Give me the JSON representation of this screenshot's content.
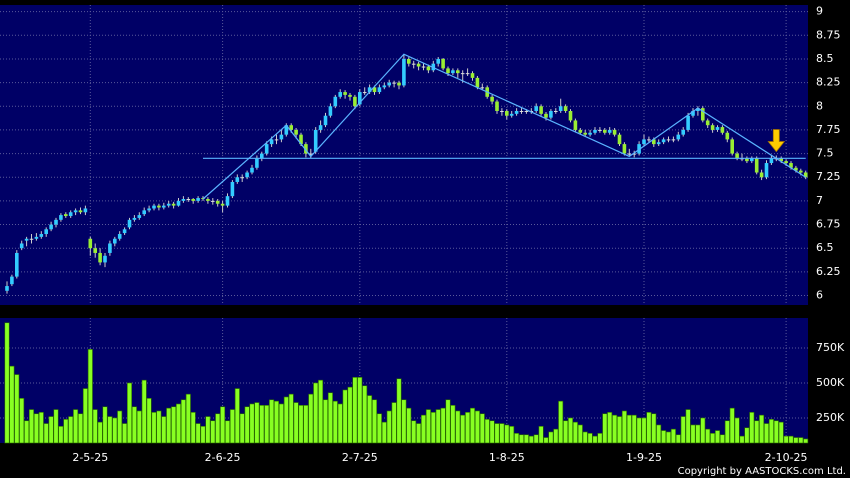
{
  "chart_data": {
    "type": "candlestick",
    "up_color": "#33ccff",
    "down_color": "#99ee33",
    "grid": true,
    "ylim": [
      5.9,
      9.07
    ],
    "yticks": [
      6,
      6.25,
      6.5,
      6.75,
      7,
      7.25,
      7.5,
      7.75,
      8,
      8.25,
      8.5,
      8.75,
      9
    ],
    "categories": [
      null,
      null,
      null,
      null,
      null,
      null,
      null,
      null,
      null,
      null,
      null,
      null,
      null,
      null,
      null,
      null,
      null,
      "2-5-25",
      null,
      null,
      null,
      null,
      null,
      null,
      null,
      null,
      null,
      null,
      null,
      null,
      null,
      null,
      null,
      null,
      null,
      null,
      null,
      null,
      null,
      null,
      null,
      null,
      null,
      null,
      "2-6-25",
      null,
      null,
      null,
      null,
      null,
      null,
      null,
      null,
      null,
      null,
      null,
      null,
      null,
      null,
      null,
      null,
      null,
      null,
      null,
      null,
      null,
      null,
      null,
      null,
      null,
      null,
      null,
      "2-7-25",
      null,
      null,
      null,
      null,
      null,
      null,
      null,
      null,
      null,
      null,
      null,
      null,
      null,
      null,
      null,
      null,
      null,
      null,
      null,
      null,
      null,
      null,
      null,
      null,
      null,
      null,
      null,
      null,
      null,
      "1-8-25",
      null,
      null,
      null,
      null,
      null,
      null,
      null,
      null,
      null,
      null,
      null,
      null,
      null,
      null,
      null,
      null,
      null,
      null,
      null,
      null,
      null,
      null,
      null,
      null,
      null,
      null,
      null,
      "1-9-25",
      null,
      null,
      null,
      null,
      null,
      null,
      null,
      null,
      null,
      null,
      null,
      null,
      null,
      null,
      null,
      null,
      null,
      null,
      null,
      null,
      null,
      null,
      null,
      null,
      null,
      null,
      null,
      null,
      "2-10-25",
      null,
      null,
      null,
      null
    ],
    "candles": [
      [
        6.05,
        6.15,
        6.02,
        6.1
      ],
      [
        6.12,
        6.22,
        6.1,
        6.2
      ],
      [
        6.2,
        6.48,
        6.18,
        6.45
      ],
      [
        6.5,
        6.58,
        6.48,
        6.55
      ],
      [
        6.58,
        6.62,
        6.52,
        6.6
      ],
      [
        6.6,
        6.65,
        6.55,
        6.6
      ],
      [
        6.6,
        6.66,
        6.58,
        6.62
      ],
      [
        6.62,
        6.68,
        6.6,
        6.65
      ],
      [
        6.65,
        6.72,
        6.62,
        6.7
      ],
      [
        6.7,
        6.78,
        6.68,
        6.75
      ],
      [
        6.75,
        6.82,
        6.72,
        6.8
      ],
      [
        6.8,
        6.87,
        6.78,
        6.85
      ],
      [
        6.86,
        6.88,
        6.82,
        6.84
      ],
      [
        6.84,
        6.9,
        6.82,
        6.88
      ],
      [
        6.88,
        6.92,
        6.85,
        6.9
      ],
      [
        6.9,
        6.93,
        6.86,
        6.88
      ],
      [
        6.88,
        6.95,
        6.85,
        6.92
      ],
      [
        6.6,
        6.62,
        6.42,
        6.5
      ],
      [
        6.5,
        6.55,
        6.4,
        6.45
      ],
      [
        6.45,
        6.5,
        6.32,
        6.35
      ],
      [
        6.35,
        6.45,
        6.3,
        6.42
      ],
      [
        6.45,
        6.58,
        6.42,
        6.55
      ],
      [
        6.55,
        6.62,
        6.52,
        6.6
      ],
      [
        6.6,
        6.68,
        6.58,
        6.65
      ],
      [
        6.66,
        6.72,
        6.64,
        6.7
      ],
      [
        6.72,
        6.82,
        6.7,
        6.8
      ],
      [
        6.8,
        6.85,
        6.78,
        6.82
      ],
      [
        6.82,
        6.88,
        6.8,
        6.85
      ],
      [
        6.86,
        6.93,
        6.84,
        6.9
      ],
      [
        6.9,
        6.95,
        6.88,
        6.92
      ],
      [
        6.92,
        6.97,
        6.9,
        6.95
      ],
      [
        6.95,
        6.97,
        6.9,
        6.93
      ],
      [
        6.93,
        6.98,
        6.91,
        6.95
      ],
      [
        6.95,
        7,
        6.93,
        6.97
      ],
      [
        6.97,
        6.99,
        6.92,
        6.95
      ],
      [
        6.95,
        7.03,
        6.94,
        7
      ],
      [
        7,
        7.05,
        6.98,
        7.02
      ],
      [
        7.02,
        7.04,
        6.99,
        7.02
      ],
      [
        7.02,
        7.03,
        6.97,
        7
      ],
      [
        7,
        7.05,
        6.98,
        7.03
      ],
      [
        7.03,
        7.05,
        7,
        7.02
      ],
      [
        7.02,
        7.04,
        6.97,
        7
      ],
      [
        7,
        7.03,
        6.96,
        7
      ],
      [
        7,
        7.02,
        6.94,
        6.97
      ],
      [
        6.97,
        7,
        6.88,
        6.95
      ],
      [
        6.95,
        7.08,
        6.93,
        7.05
      ],
      [
        7.05,
        7.22,
        7.03,
        7.2
      ],
      [
        7.2,
        7.28,
        7.18,
        7.25
      ],
      [
        7.25,
        7.28,
        7.2,
        7.25
      ],
      [
        7.25,
        7.32,
        7.23,
        7.3
      ],
      [
        7.3,
        7.38,
        7.28,
        7.35
      ],
      [
        7.35,
        7.48,
        7.33,
        7.45
      ],
      [
        7.45,
        7.52,
        7.42,
        7.5
      ],
      [
        7.5,
        7.63,
        7.48,
        7.6
      ],
      [
        7.6,
        7.68,
        7.57,
        7.65
      ],
      [
        7.65,
        7.7,
        7.6,
        7.65
      ],
      [
        7.65,
        7.75,
        7.62,
        7.7
      ],
      [
        7.7,
        7.82,
        7.68,
        7.8
      ],
      [
        7.8,
        7.82,
        7.72,
        7.75
      ],
      [
        7.75,
        7.77,
        7.66,
        7.7
      ],
      [
        7.7,
        7.72,
        7.58,
        7.6
      ],
      [
        7.6,
        7.62,
        7.46,
        7.5
      ],
      [
        7.5,
        7.55,
        7.45,
        7.5
      ],
      [
        7.52,
        7.78,
        7.5,
        7.75
      ],
      [
        7.75,
        7.85,
        7.72,
        7.8
      ],
      [
        7.8,
        7.93,
        7.78,
        7.9
      ],
      [
        7.9,
        8.03,
        7.88,
        8
      ],
      [
        8,
        8.12,
        7.98,
        8.1
      ],
      [
        8.1,
        8.18,
        8.08,
        8.15
      ],
      [
        8.15,
        8.17,
        8.08,
        8.12
      ],
      [
        8.12,
        8.14,
        8.06,
        8.1
      ],
      [
        8.1,
        8.12,
        7.97,
        8
      ],
      [
        8.02,
        8.18,
        8,
        8.15
      ],
      [
        8.15,
        8.2,
        8.12,
        8.15
      ],
      [
        8.15,
        8.23,
        8.13,
        8.2
      ],
      [
        8.2,
        8.22,
        8.12,
        8.15
      ],
      [
        8.15,
        8.23,
        8.13,
        8.2
      ],
      [
        8.2,
        8.25,
        8.18,
        8.22
      ],
      [
        8.22,
        8.28,
        8.2,
        8.25
      ],
      [
        8.25,
        8.27,
        8.2,
        8.25
      ],
      [
        8.25,
        8.27,
        8.18,
        8.22
      ],
      [
        8.22,
        8.55,
        8.2,
        8.5
      ],
      [
        8.5,
        8.52,
        8.42,
        8.45
      ],
      [
        8.45,
        8.48,
        8.4,
        8.45
      ],
      [
        8.45,
        8.47,
        8.38,
        8.42
      ],
      [
        8.42,
        8.46,
        8.38,
        8.42
      ],
      [
        8.42,
        8.44,
        8.35,
        8.38
      ],
      [
        8.38,
        8.48,
        8.36,
        8.45
      ],
      [
        8.45,
        8.52,
        8.42,
        8.5
      ],
      [
        8.5,
        8.51,
        8.38,
        8.4
      ],
      [
        8.4,
        8.42,
        8.32,
        8.35
      ],
      [
        8.35,
        8.4,
        8.33,
        8.38
      ],
      [
        8.38,
        8.4,
        8.3,
        8.35
      ],
      [
        8.35,
        8.38,
        8.25,
        8.35
      ],
      [
        8.35,
        8.4,
        8.32,
        8.35
      ],
      [
        8.35,
        8.37,
        8.27,
        8.3
      ],
      [
        8.3,
        8.32,
        8.18,
        8.2
      ],
      [
        8.2,
        8.24,
        8.17,
        8.2
      ],
      [
        8.2,
        8.22,
        8.08,
        8.1
      ],
      [
        8.1,
        8.12,
        8.02,
        8.05
      ],
      [
        8.05,
        8.07,
        7.92,
        7.95
      ],
      [
        7.95,
        7.98,
        7.9,
        7.95
      ],
      [
        7.95,
        7.97,
        7.86,
        7.9
      ],
      [
        7.9,
        7.95,
        7.88,
        7.92
      ],
      [
        7.92,
        7.98,
        7.9,
        7.95
      ],
      [
        7.95,
        7.98,
        7.92,
        7.95
      ],
      [
        7.95,
        7.97,
        7.92,
        7.95
      ],
      [
        7.95,
        7.98,
        7.92,
        7.95
      ],
      [
        7.95,
        8.03,
        7.93,
        8
      ],
      [
        8,
        8.02,
        7.9,
        7.92
      ],
      [
        7.92,
        7.94,
        7.85,
        7.88
      ],
      [
        7.88,
        7.97,
        7.86,
        7.95
      ],
      [
        7.95,
        7.98,
        7.92,
        7.95
      ],
      [
        7.95,
        8.08,
        7.93,
        8
      ],
      [
        8,
        8.02,
        7.93,
        7.95
      ],
      [
        7.95,
        7.97,
        7.83,
        7.85
      ],
      [
        7.85,
        7.87,
        7.73,
        7.75
      ],
      [
        7.75,
        7.77,
        7.7,
        7.72
      ],
      [
        7.72,
        7.75,
        7.68,
        7.7
      ],
      [
        7.7,
        7.75,
        7.68,
        7.72
      ],
      [
        7.72,
        7.78,
        7.7,
        7.75
      ],
      [
        7.75,
        7.78,
        7.72,
        7.75
      ],
      [
        7.75,
        7.77,
        7.7,
        7.72
      ],
      [
        7.72,
        7.78,
        7.7,
        7.75
      ],
      [
        7.75,
        7.77,
        7.68,
        7.7
      ],
      [
        7.7,
        7.72,
        7.58,
        7.6
      ],
      [
        7.6,
        7.62,
        7.48,
        7.5
      ],
      [
        7.5,
        7.55,
        7.47,
        7.5
      ],
      [
        7.5,
        7.53,
        7.46,
        7.5
      ],
      [
        7.5,
        7.63,
        7.48,
        7.6
      ],
      [
        7.6,
        7.7,
        7.58,
        7.65
      ],
      [
        7.65,
        7.68,
        7.62,
        7.65
      ],
      [
        7.65,
        7.67,
        7.57,
        7.6
      ],
      [
        7.6,
        7.65,
        7.58,
        7.62
      ],
      [
        7.62,
        7.67,
        7.6,
        7.65
      ],
      [
        7.65,
        7.68,
        7.62,
        7.65
      ],
      [
        7.65,
        7.68,
        7.62,
        7.65
      ],
      [
        7.65,
        7.73,
        7.63,
        7.7
      ],
      [
        7.7,
        7.78,
        7.68,
        7.75
      ],
      [
        7.75,
        7.93,
        7.73,
        7.9
      ],
      [
        7.9,
        7.98,
        7.88,
        7.95
      ],
      [
        7.95,
        8,
        7.9,
        7.98
      ],
      [
        7.98,
        8,
        7.83,
        7.85
      ],
      [
        7.85,
        7.87,
        7.77,
        7.8
      ],
      [
        7.8,
        7.82,
        7.72,
        7.75
      ],
      [
        7.75,
        7.8,
        7.73,
        7.78
      ],
      [
        7.78,
        7.8,
        7.7,
        7.72
      ],
      [
        7.72,
        7.74,
        7.62,
        7.65
      ],
      [
        7.65,
        7.67,
        7.48,
        7.5
      ],
      [
        7.5,
        7.52,
        7.43,
        7.45
      ],
      [
        7.45,
        7.5,
        7.42,
        7.45
      ],
      [
        7.45,
        7.47,
        7.4,
        7.42
      ],
      [
        7.42,
        7.47,
        7.4,
        7.45
      ],
      [
        7.45,
        7.47,
        7.28,
        7.3
      ],
      [
        7.3,
        7.33,
        7.22,
        7.25
      ],
      [
        7.25,
        7.43,
        7.23,
        7.4
      ],
      [
        7.4,
        7.48,
        7.38,
        7.45
      ],
      [
        7.45,
        7.48,
        7.42,
        7.45
      ],
      [
        7.45,
        7.47,
        7.4,
        7.42
      ],
      [
        7.42,
        7.44,
        7.37,
        7.4
      ],
      [
        7.4,
        7.42,
        7.33,
        7.35
      ],
      [
        7.35,
        7.37,
        7.3,
        7.32
      ],
      [
        7.32,
        7.34,
        7.27,
        7.3
      ],
      [
        7.3,
        7.32,
        7.23,
        7.25
      ]
    ],
    "trendlines": [
      {
        "x": [
          40,
          163
        ],
        "y": [
          7.45,
          7.45
        ]
      },
      {
        "x": [
          40,
          57,
          62,
          81,
          127,
          141,
          163
        ],
        "y": [
          7.02,
          7.8,
          7.47,
          8.55,
          7.47,
          7.98,
          7.25
        ]
      }
    ],
    "trendline_color": "#5ab4ff",
    "arrow": {
      "x": 157,
      "y": 7.5,
      "color": "#ffcc00"
    },
    "volume": {
      "color": "#88ff22",
      "ylim": [
        71,
        964
      ],
      "yticks": [
        {
          "value": 250,
          "label": "250K"
        },
        {
          "value": 500,
          "label": "500K"
        },
        {
          "value": 750,
          "label": "750K"
        }
      ],
      "values": [
        930,
        620,
        560,
        390,
        230,
        310,
        280,
        290,
        210,
        260,
        310,
        190,
        240,
        260,
        310,
        280,
        460,
        740,
        310,
        220,
        330,
        260,
        250,
        300,
        210,
        500,
        330,
        300,
        520,
        390,
        290,
        300,
        260,
        320,
        330,
        350,
        380,
        420,
        290,
        210,
        190,
        260,
        230,
        280,
        330,
        230,
        310,
        460,
        280,
        330,
        350,
        360,
        340,
        340,
        380,
        370,
        350,
        400,
        420,
        360,
        340,
        340,
        420,
        500,
        520,
        380,
        430,
        370,
        350,
        450,
        470,
        540,
        540,
        480,
        410,
        380,
        280,
        220,
        300,
        360,
        530,
        380,
        320,
        230,
        210,
        270,
        310,
        290,
        310,
        320,
        380,
        340,
        300,
        270,
        290,
        320,
        300,
        280,
        240,
        230,
        210,
        210,
        200,
        190,
        140,
        130,
        130,
        120,
        130,
        190,
        110,
        150,
        170,
        370,
        230,
        250,
        220,
        200,
        150,
        140,
        120,
        140,
        280,
        290,
        270,
        260,
        300,
        270,
        270,
        250,
        250,
        290,
        280,
        200,
        160,
        150,
        170,
        130,
        260,
        310,
        200,
        200,
        250,
        170,
        140,
        160,
        130,
        230,
        320,
        250,
        120,
        180,
        290,
        230,
        270,
        210,
        240,
        230,
        220,
        120,
        120,
        110,
        110,
        100
      ]
    },
    "note": "Copyright by AASTOCKS.com Ltd."
  }
}
